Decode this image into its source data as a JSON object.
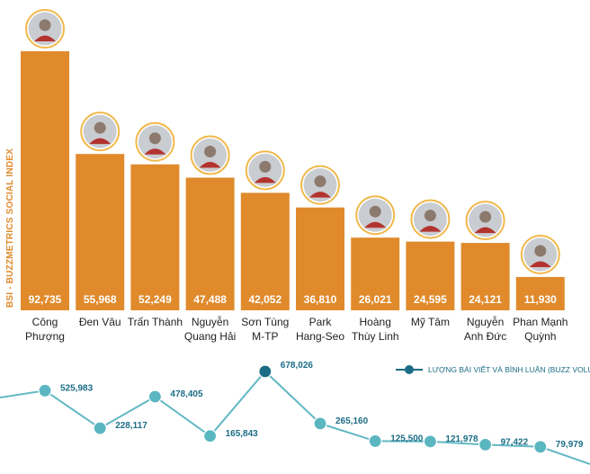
{
  "chart_data": [
    {
      "type": "bar",
      "ylabel": "BSI - BUZZMETRICS SOCIAL INDEX",
      "categories": [
        [
          "Công",
          "Phượng"
        ],
        [
          "Đen Vâu"
        ],
        [
          "Trấn Thành"
        ],
        [
          "Nguyễn",
          "Quang Hải"
        ],
        [
          "Sơn Tùng",
          "M-TP"
        ],
        [
          "Park",
          "Hang-Seo"
        ],
        [
          "Hoàng",
          "Thùy Linh"
        ],
        [
          "Mỹ Tâm"
        ],
        [
          "Nguyễn",
          "Anh Đức"
        ],
        [
          "Phan Mạnh",
          "Quỳnh"
        ]
      ],
      "values": [
        92735,
        55968,
        52249,
        47488,
        42052,
        36810,
        26021,
        24595,
        24121,
        11930
      ],
      "value_labels": [
        "92,735",
        "55,968",
        "52,249",
        "47,488",
        "42,052",
        "36,810",
        "26,021",
        "24,595",
        "24,121",
        "11,930"
      ],
      "ylim": [
        0,
        100000
      ],
      "grid": false,
      "colors": {
        "bar": "#e08a2c",
        "value_text": "#ffffff",
        "category_text": "#222222",
        "avatar_ring": "#f0b84a"
      }
    },
    {
      "type": "line",
      "series_name": "LƯỢNG BÀI VIẾT VÀ BÌNH LUẬN (BUZZ VOLUME)",
      "values": [
        525983,
        228117,
        478405,
        165843,
        678026,
        265160,
        125500,
        121978,
        97422,
        79979
      ],
      "value_labels": [
        "525,983",
        "228,117",
        "478,405",
        "165,843",
        "678,026",
        "265,160",
        "125,500",
        "121,978",
        "97,422",
        "79,979"
      ],
      "ylim": [
        0,
        700000
      ],
      "legend_position": "top-right",
      "colors": {
        "line": "#62b8c4",
        "marker": "#5ab6c1",
        "marker_peak": "#1b6d86",
        "label": "#1b6d86"
      }
    }
  ]
}
